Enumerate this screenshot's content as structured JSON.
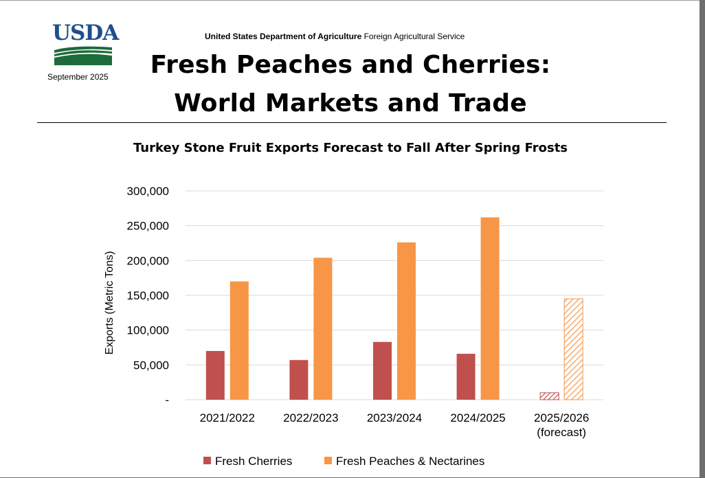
{
  "header": {
    "logo_text": "USDA",
    "date": "September 2025",
    "agency_bold": "United States Department of Agriculture",
    "agency_rest": " Foreign Agricultural Service",
    "title_line1": "Fresh Peaches and Cherries:",
    "title_line2": "World Markets and Trade"
  },
  "colors": {
    "cherries": "#c0504d",
    "peaches": "#f79646",
    "grid": "#d9d9d9",
    "usda_blue": "#1f4e8c",
    "usda_green": "#1c6b3a"
  },
  "chart_data": {
    "type": "bar",
    "title": "Turkey Stone Fruit Exports Forecast to Fall After Spring Frosts",
    "ylabel": "Exports (Metric Tons)",
    "xlabel": "",
    "categories": [
      "2021/2022",
      "2022/2023",
      "2023/2024",
      "2024/2025",
      "2025/2026\n(forecast)"
    ],
    "series": [
      {
        "name": "Fresh Cherries",
        "values": [
          70000,
          57000,
          83000,
          66000,
          10000
        ]
      },
      {
        "name": "Fresh Peaches & Nectarines",
        "values": [
          170000,
          204000,
          226000,
          262000,
          145000
        ]
      }
    ],
    "forecast_index": 4,
    "ylim": [
      0,
      300000
    ],
    "yticks": [
      0,
      50000,
      100000,
      150000,
      200000,
      250000,
      300000
    ],
    "ytick_labels": [
      "-",
      "50,000",
      "100,000",
      "150,000",
      "200,000",
      "250,000",
      "300,000"
    ],
    "grid": true,
    "legend": "bottom"
  }
}
